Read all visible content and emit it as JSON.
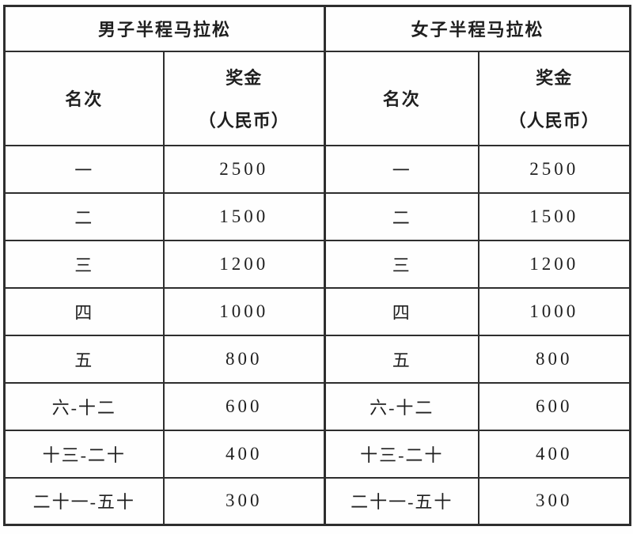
{
  "page": {
    "background": "#fefefe",
    "border_color": "#2e2e2e",
    "text_color": "#1f1f1f"
  },
  "table": {
    "groups": [
      {
        "title": "男子半程马拉松",
        "rank_header": "名次",
        "prize_header_line1": "奖金",
        "prize_header_line2": "（人民币）",
        "rows": [
          {
            "rank": "一",
            "prize": "2500"
          },
          {
            "rank": "二",
            "prize": "1500"
          },
          {
            "rank": "三",
            "prize": "1200"
          },
          {
            "rank": "四",
            "prize": "1000"
          },
          {
            "rank": "五",
            "prize": "800"
          },
          {
            "rank": "六-十二",
            "prize": "600"
          },
          {
            "rank": "十三-二十",
            "prize": "400"
          },
          {
            "rank": "二十一-五十",
            "prize": "300"
          }
        ]
      },
      {
        "title": "女子半程马拉松",
        "rank_header": "名次",
        "prize_header_line1": "奖金",
        "prize_header_line2": "（人民币）",
        "rows": [
          {
            "rank": "一",
            "prize": "2500"
          },
          {
            "rank": "二",
            "prize": "1500"
          },
          {
            "rank": "三",
            "prize": "1200"
          },
          {
            "rank": "四",
            "prize": "1000"
          },
          {
            "rank": "五",
            "prize": "800"
          },
          {
            "rank": "六-十二",
            "prize": "600"
          },
          {
            "rank": "十三-二十",
            "prize": "400"
          },
          {
            "rank": "二十一-五十",
            "prize": "300"
          }
        ]
      }
    ]
  },
  "chart_data": {
    "type": "table",
    "column_groups": [
      "男子半程马拉松",
      "女子半程马拉松"
    ],
    "columns": [
      "名次",
      "奖金（人民币）",
      "名次",
      "奖金（人民币）"
    ],
    "rows": [
      [
        "一",
        2500,
        "一",
        2500
      ],
      [
        "二",
        1500,
        "二",
        1500
      ],
      [
        "三",
        1200,
        "三",
        1200
      ],
      [
        "四",
        1000,
        "四",
        1000
      ],
      [
        "五",
        800,
        "五",
        800
      ],
      [
        "六-十二",
        600,
        "六-十二",
        600
      ],
      [
        "十三-二十",
        400,
        "十三-二十",
        400
      ],
      [
        "二十一-五十",
        300,
        "二十一-五十",
        300
      ]
    ]
  }
}
